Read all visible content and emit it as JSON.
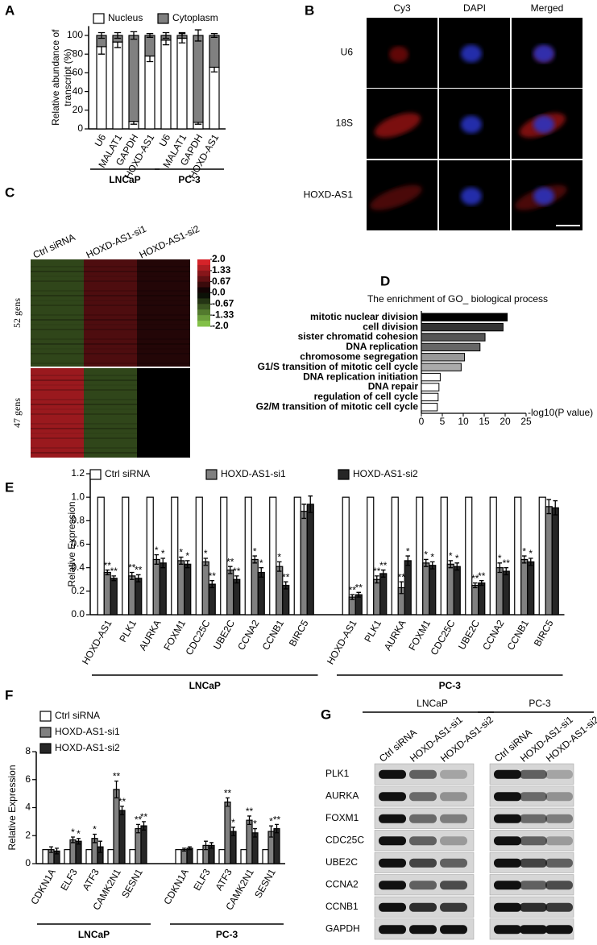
{
  "panel_labels": [
    "A",
    "B",
    "C",
    "D",
    "E",
    "F",
    "G"
  ],
  "chart_data": [
    {
      "type": "stacked_bar",
      "ylabel": [
        "Relative abundance of",
        "transcript (%)"
      ],
      "categories": [
        "U6",
        "MALAT1",
        "GAPDH",
        "HOXD-AS1",
        "U6",
        "MALAT1",
        "GAPDH",
        "HOXD-AS1"
      ],
      "group_labels": [
        "LNCaP",
        "PC-3"
      ],
      "series": [
        {
          "name": "Nucleus",
          "color": "#ffffff",
          "values": [
            88,
            93,
            8,
            78,
            95,
            97,
            7,
            66
          ],
          "errors": [
            8,
            6,
            3,
            6,
            5,
            5,
            2,
            5
          ]
        },
        {
          "name": "Cytoplasm",
          "color": "#808080",
          "values": [
            12,
            7,
            92,
            22,
            5,
            3,
            93,
            34
          ],
          "errors": [
            3,
            3,
            4,
            2,
            3,
            3,
            6,
            2
          ]
        }
      ],
      "ylim": [
        0,
        110
      ],
      "yticks": [
        0,
        20,
        40,
        60,
        80,
        100
      ]
    },
    {
      "type": "heatmap",
      "columns": [
        "Ctrl siRNA",
        "HOXD-AS1-si1",
        "HOXD-AS1-si2"
      ],
      "row_groups": [
        {
          "label": "52 gens",
          "values": [
            -0.67,
            0.67,
            0.3
          ]
        },
        {
          "label": "47 gens",
          "values": [
            1.33,
            -0.67,
            0
          ]
        }
      ],
      "colormap": [
        "#8fd14f",
        "#000000",
        "#e8262d"
      ],
      "colorbar_ticks": [
        {
          "value": 2,
          "label": "2.0"
        },
        1.33,
        0.67,
        {
          "value": 0,
          "label": "0.0"
        },
        -0.67,
        -1.33,
        {
          "value": -2,
          "label": "-2.0"
        }
      ]
    },
    {
      "type": "hbar",
      "title": "The enrichment of GO_ biological process",
      "categories": [
        "mitotic nuclear division",
        "cell division",
        "sister chromatid cohesion",
        "DNA replication",
        "chromosome segregation",
        "G1/S transition of mitotic cell cycle",
        "DNA replication initiation",
        "DNA repair",
        "regulation of cell cycle",
        "G2/M transition of mitotic cell cycle"
      ],
      "values": [
        20.5,
        19.5,
        15.2,
        14,
        10.3,
        9.5,
        4.5,
        4.2,
        4,
        3.8
      ],
      "colors": [
        "#000000",
        "#333333",
        "#555555",
        "#666666",
        "#999999",
        "#aaaaaa",
        "#ffffff",
        "#ffffff",
        "#ffffff",
        "#ffffff"
      ],
      "xlim": [
        0,
        25
      ],
      "xticks": [
        0,
        5,
        10,
        15,
        20,
        25
      ],
      "xlabel": "-log10(P value)"
    },
    {
      "type": "grouped_bar",
      "ylabel": [
        "Relative Expression"
      ],
      "categories": [
        "HOXD-AS1",
        "PLK1",
        "AURKA",
        "FOXM1",
        "CDC25C",
        "UBE2C",
        "CCNA2",
        "CCNB1",
        "BIRC5",
        "HOXD-AS1",
        "PLK1",
        "AURKA",
        "FOXM1",
        "CDC25C",
        "UBE2C",
        "CCNA2",
        "CCNB1",
        "BIRC5"
      ],
      "group_labels": [
        "LNCaP",
        "PC-3"
      ],
      "series": [
        {
          "name": "Ctrl siRNA",
          "color": "#ffffff",
          "values": [
            1,
            1,
            1,
            1,
            1,
            1,
            1,
            1,
            1,
            1,
            1,
            1,
            1,
            1,
            1,
            1,
            1,
            1
          ]
        },
        {
          "name": "HOXD-AS1-si1",
          "color": "#808080",
          "values": [
            0.36,
            0.33,
            0.47,
            0.46,
            0.45,
            0.38,
            0.47,
            0.41,
            0.88,
            0.15,
            0.3,
            0.23,
            0.44,
            0.43,
            0.25,
            0.4,
            0.47,
            0.92
          ],
          "errors": [
            0.02,
            0.03,
            0.04,
            0.03,
            0.03,
            0.03,
            0.03,
            0.04,
            0.06,
            0.02,
            0.03,
            0.05,
            0.03,
            0.03,
            0.02,
            0.04,
            0.03,
            0.06
          ],
          "stars": [
            "**",
            "**",
            "*",
            "*",
            "*",
            "**",
            "*",
            "*",
            null,
            "**",
            "**",
            "**",
            "*",
            "*",
            "**",
            "*",
            "*",
            null
          ]
        },
        {
          "name": "HOXD-AS1-si2",
          "color": "#262626",
          "values": [
            0.31,
            0.31,
            0.44,
            0.43,
            0.26,
            0.3,
            0.36,
            0.25,
            0.94,
            0.17,
            0.35,
            0.46,
            0.42,
            0.41,
            0.27,
            0.37,
            0.45,
            0.91
          ],
          "errors": [
            0.02,
            0.03,
            0.04,
            0.03,
            0.03,
            0.03,
            0.04,
            0.03,
            0.07,
            0.02,
            0.03,
            0.04,
            0.03,
            0.03,
            0.02,
            0.03,
            0.03,
            0.06
          ],
          "stars": [
            "**",
            "**",
            "*",
            "*",
            "**",
            "**",
            "*",
            "**",
            null,
            "**",
            "**",
            "*",
            "*",
            "*",
            "**",
            "**",
            "*",
            null
          ]
        }
      ],
      "ylim": [
        0,
        1.2
      ],
      "yticks": [
        {
          "value": 0,
          "label": "0.0"
        },
        0.2,
        0.4,
        0.6,
        0.8,
        {
          "value": 1,
          "label": "1.0"
        },
        1.2
      ]
    },
    {
      "type": "grouped_bar",
      "ylabel": [
        "Relative Expression"
      ],
      "categories": [
        "CDKN1A",
        "ELF3",
        "ATF3",
        "CAMK2N1",
        "SESN1",
        "CDKN1A",
        "ELF3",
        "ATF3",
        "CAMK2N1",
        "SESN1"
      ],
      "group_labels": [
        "LNCaP",
        "PC-3"
      ],
      "series": [
        {
          "name": "Ctrl siRNA",
          "color": "#ffffff",
          "values": [
            1,
            1,
            1,
            1,
            1,
            1,
            1,
            1,
            1,
            1
          ]
        },
        {
          "name": "HOXD-AS1-si1",
          "color": "#808080",
          "values": [
            1,
            1.7,
            1.8,
            5.3,
            2.5,
            1,
            1.3,
            4.4,
            3.1,
            2.3
          ],
          "errors": [
            0.2,
            0.2,
            0.3,
            0.6,
            0.3,
            0.1,
            0.3,
            0.3,
            0.3,
            0.4
          ],
          "stars": [
            null,
            "*",
            "*",
            "**",
            "**",
            null,
            null,
            "**",
            "**",
            "*"
          ]
        },
        {
          "name": "HOXD-AS1-si2",
          "color": "#262626",
          "values": [
            0.9,
            1.6,
            1.2,
            3.8,
            2.7,
            1.1,
            1.3,
            2.3,
            2.2,
            2.5
          ],
          "errors": [
            0.2,
            0.2,
            0.4,
            0.3,
            0.3,
            0.1,
            0.2,
            0.3,
            0.3,
            0.3
          ],
          "stars": [
            null,
            "*",
            null,
            "**",
            "**",
            null,
            null,
            "*",
            "*",
            "**"
          ]
        }
      ],
      "ylim": [
        0,
        8
      ],
      "yticks": [
        0,
        2,
        4,
        6,
        8
      ]
    }
  ],
  "microscopy": {
    "columns": [
      "Cy3",
      "DAPI",
      "Merged"
    ],
    "rows": [
      "U6",
      "18S",
      "HOXD-AS1"
    ]
  },
  "western_blot": {
    "cell_lines": [
      "LNCaP",
      "PC-3"
    ],
    "lanes": [
      "Ctrl siRNA",
      "HOXD-AS1-si1",
      "HOXD-AS1-si2"
    ],
    "proteins": [
      "PLK1",
      "AURKA",
      "FOXM1",
      "CDC25C",
      "UBE2C",
      "CCNA2",
      "CCNB1",
      "GAPDH"
    ]
  }
}
